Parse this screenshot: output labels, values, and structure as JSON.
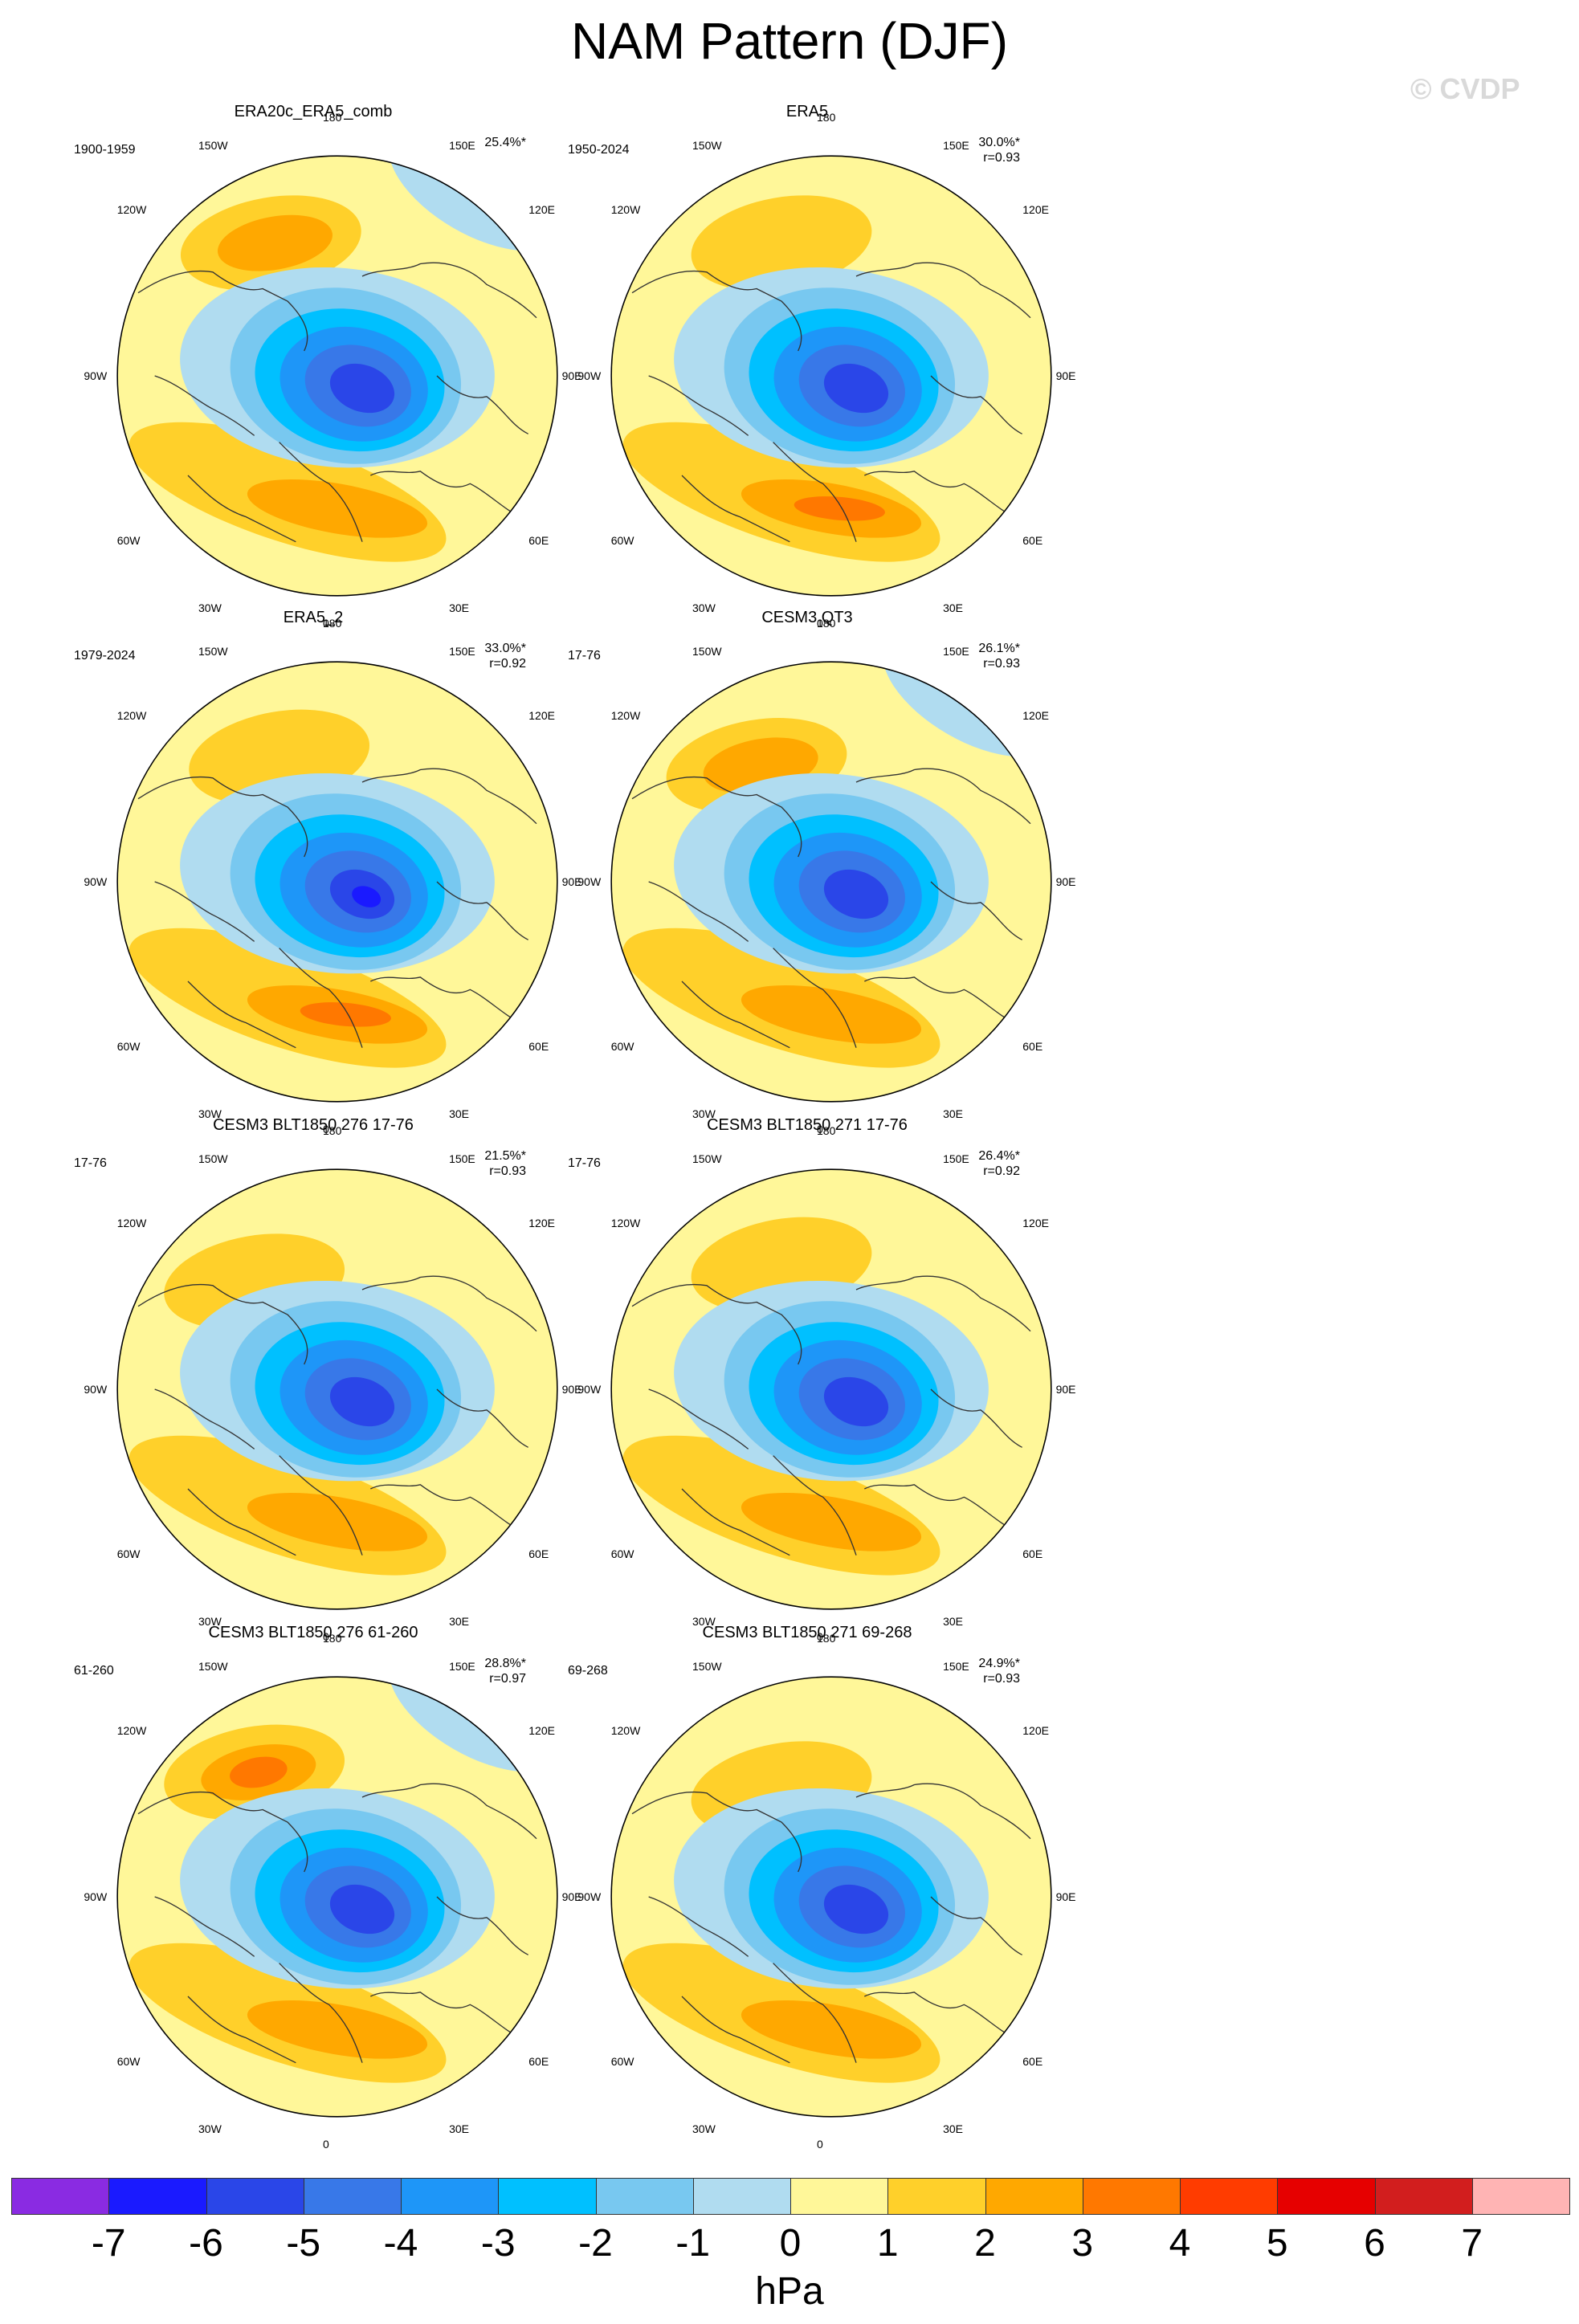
{
  "title": "NAM Pattern (DJF)",
  "copyright": "© CVDP",
  "longitude_labels": {
    "top": "180",
    "bottom": "0",
    "tl": "150W",
    "tr": "150E",
    "ul": "120W",
    "ur": "120E",
    "ml": "90W",
    "mr": "90E",
    "ll": "60W",
    "lr": "60E",
    "bl": "30W",
    "br": "30E"
  },
  "panels": [
    {
      "title": "ERA20c_ERA5_comb",
      "period": "1900-1959",
      "pct": "25.4%*",
      "r": "",
      "style": 0
    },
    {
      "title": "ERA5",
      "period": "1950-2024",
      "pct": "30.0%*",
      "r": "r=0.93",
      "style": 1
    },
    {
      "title": "ERA5_2",
      "period": "1979-2024",
      "pct": "33.0%*",
      "r": "r=0.92",
      "style": 2
    },
    {
      "title": "CESM3 QT3",
      "period": "17-76",
      "pct": "26.1%*",
      "r": "r=0.93",
      "style": 3
    },
    {
      "title": "CESM3 BLT1850 276 17-76",
      "period": "17-76",
      "pct": "21.5%*",
      "r": "r=0.93",
      "style": 4
    },
    {
      "title": "CESM3 BLT1850 271 17-76",
      "period": "17-76",
      "pct": "26.4%*",
      "r": "r=0.92",
      "style": 5
    },
    {
      "title": "CESM3 BLT1850 276 61-260",
      "period": "61-260",
      "pct": "28.8%*",
      "r": "r=0.97",
      "style": 6
    },
    {
      "title": "CESM3 BLT1850 271 69-268",
      "period": "69-268",
      "pct": "24.9%*",
      "r": "r=0.93",
      "style": 7
    }
  ],
  "colorbar": {
    "units": "hPa",
    "ticks": [
      "-7",
      "-6",
      "-5",
      "-4",
      "-3",
      "-2",
      "-1",
      "0",
      "1",
      "2",
      "3",
      "4",
      "5",
      "6",
      "7"
    ],
    "colors": [
      "#8a2be2",
      "#1a1aff",
      "#2a46e8",
      "#3878e8",
      "#1e96f8",
      "#00c0ff",
      "#78c8f0",
      "#b0dcf0",
      "#fff799",
      "#ffd02a",
      "#ffa800",
      "#ff7800",
      "#ff3c00",
      "#e60000",
      "#d21e1e",
      "#ffb4b4"
    ]
  }
}
